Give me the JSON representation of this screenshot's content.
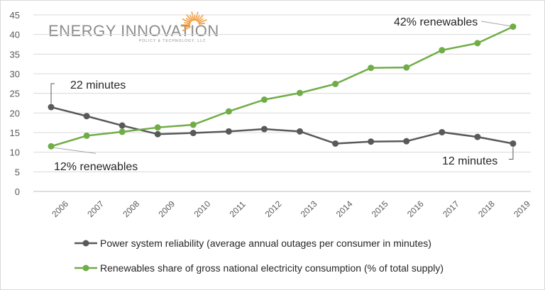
{
  "logo": {
    "name": "ENERGY INNOVATION",
    "tagline": "POLICY & TECHNOLOGY, LLC"
  },
  "colors": {
    "reliability": "#595959",
    "renewables": "#70ad47",
    "grid": "#d9d9d9",
    "logo_orange": "#f29c3c"
  },
  "chart_data": {
    "type": "line",
    "categories": [
      "2006",
      "2007",
      "2008",
      "2009",
      "2010",
      "2011",
      "2012",
      "2013",
      "2014",
      "2015",
      "2016",
      "2017",
      "2018",
      "2019"
    ],
    "ylim": [
      0,
      45
    ],
    "yticks": [
      "0",
      "5",
      "10",
      "15",
      "20",
      "25",
      "30",
      "35",
      "40",
      "45"
    ],
    "grid": true,
    "legend_position": "bottom",
    "series": [
      {
        "name": "Power system reliability (average annual outages per consumer in minutes)",
        "values": [
          21.5,
          19.2,
          16.8,
          14.6,
          14.9,
          15.3,
          15.9,
          15.3,
          12.2,
          12.7,
          12.8,
          15.1,
          13.9,
          12.2
        ]
      },
      {
        "name": "Renewables share of gross national electricity consumption (% of total supply)",
        "values": [
          11.5,
          14.2,
          15.2,
          16.3,
          17.0,
          20.4,
          23.4,
          25.1,
          27.4,
          31.5,
          31.6,
          36.0,
          37.8,
          42.0
        ]
      }
    ],
    "annotations": {
      "start_reliability": "22 minutes",
      "start_renewables": "12% renewables",
      "end_renewables": "42% renewables",
      "end_reliability": "12 minutes"
    }
  }
}
